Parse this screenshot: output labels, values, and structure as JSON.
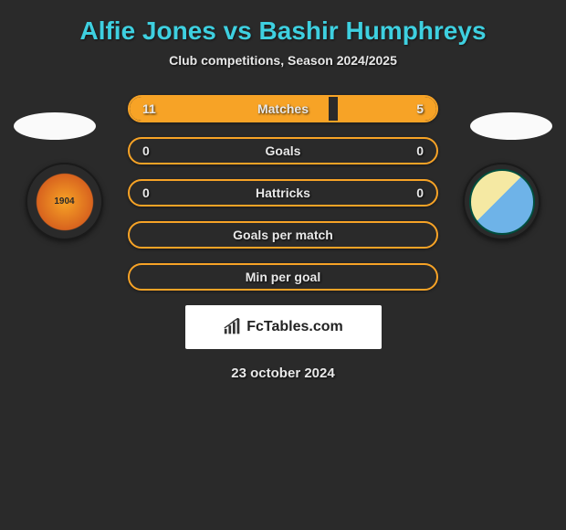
{
  "title": "Alfie Jones vs Bashir Humphreys",
  "subtitle": "Club competitions, Season 2024/2025",
  "date": "23 october 2024",
  "brand": "FcTables.com",
  "colors": {
    "accent": "#f7a326",
    "title": "#3ed0e0",
    "text": "#e8e8e8",
    "background": "#2a2a2a",
    "photo_bg": "#fafafa",
    "brand_bg": "#ffffff"
  },
  "badges": {
    "left": {
      "year": "1904"
    },
    "right": {
      "label": ""
    }
  },
  "stats": [
    {
      "label": "Matches",
      "left_val": "11",
      "right_val": "5",
      "fill_left_pct": 65,
      "fill_right_pct": 32
    },
    {
      "label": "Goals",
      "left_val": "0",
      "right_val": "0",
      "fill_left_pct": 0,
      "fill_right_pct": 0
    },
    {
      "label": "Hattricks",
      "left_val": "0",
      "right_val": "0",
      "fill_left_pct": 0,
      "fill_right_pct": 0
    },
    {
      "label": "Goals per match",
      "left_val": "",
      "right_val": "",
      "fill_left_pct": 0,
      "fill_right_pct": 0
    },
    {
      "label": "Min per goal",
      "left_val": "",
      "right_val": "",
      "fill_left_pct": 0,
      "fill_right_pct": 0
    }
  ]
}
